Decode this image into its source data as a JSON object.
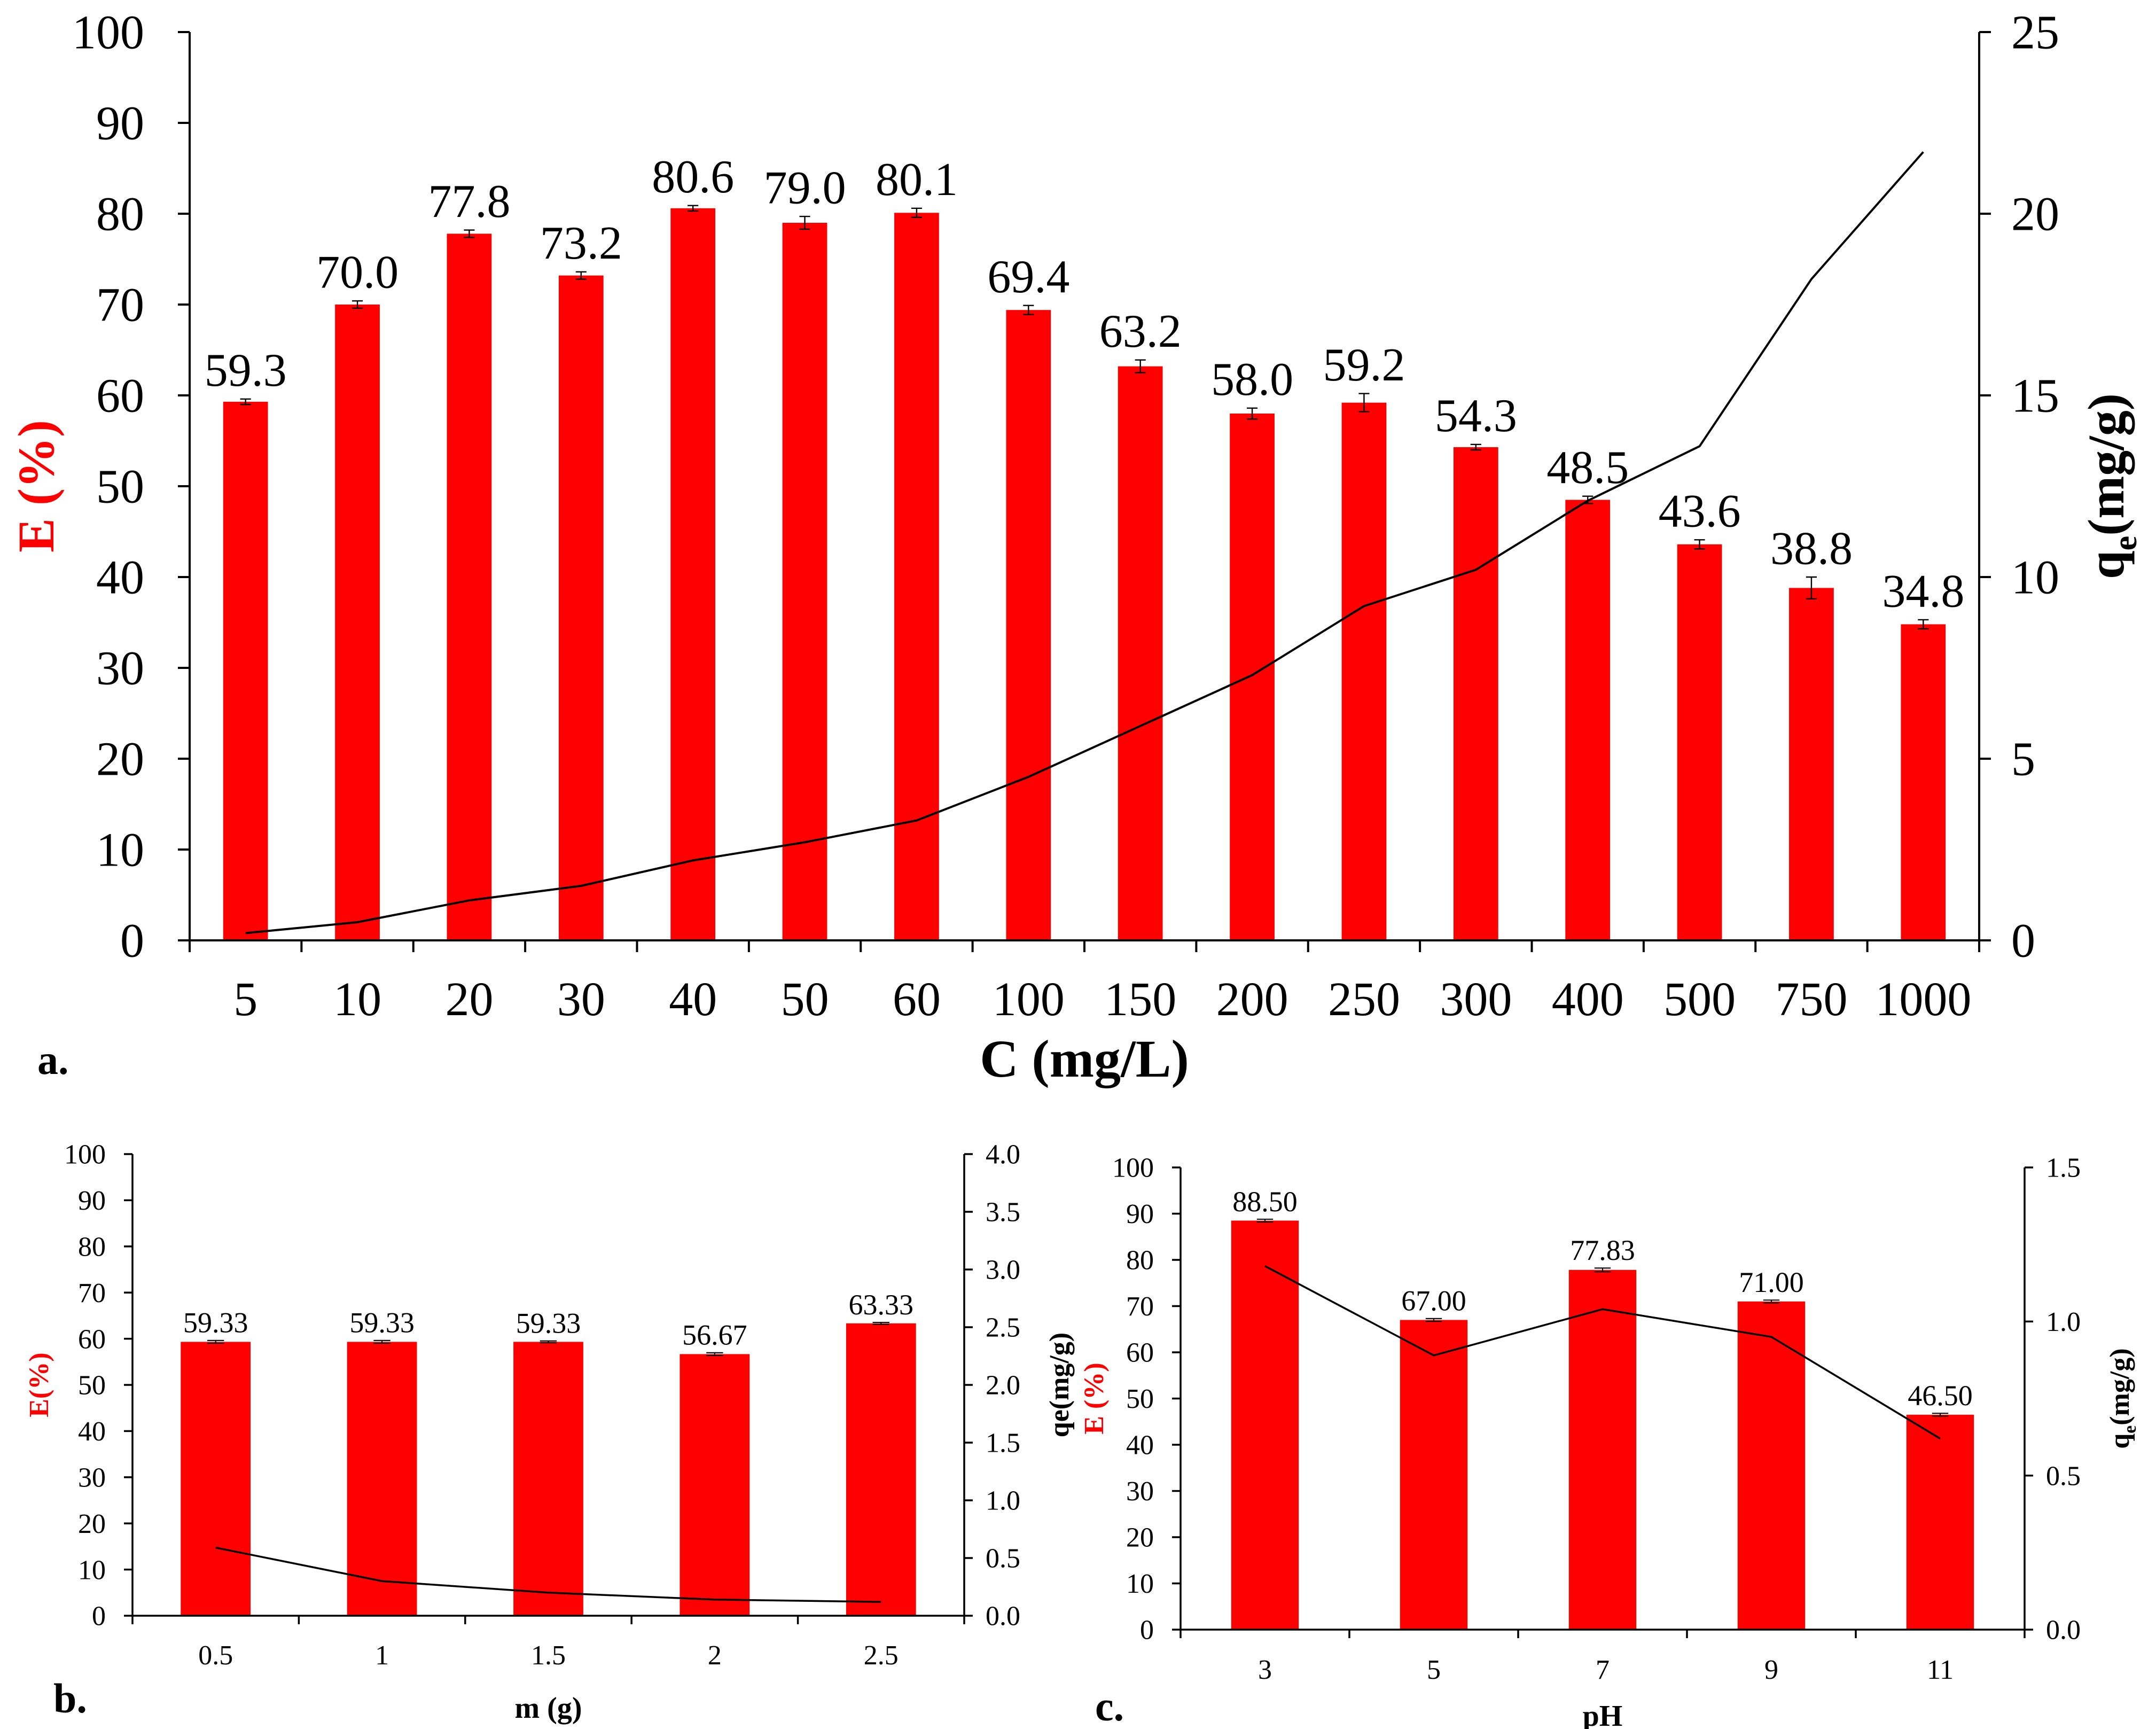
{
  "colors": {
    "bar": "#ff0000",
    "axis_red": "#ff0000",
    "line": "#000000",
    "text": "#000000"
  },
  "chart_data": [
    {
      "panel": "a",
      "panel_label": "a.",
      "type": "bar",
      "xlabel": "C (mg/L)",
      "ylabel": "E (%)",
      "y2label_main": "q",
      "y2label_sub": "e",
      "y2label_rest": "(mg/g)",
      "categories": [
        "5",
        "10",
        "20",
        "30",
        "40",
        "50",
        "60",
        "100",
        "150",
        "200",
        "250",
        "300",
        "400",
        "500",
        "750",
        "1000"
      ],
      "values": [
        59.3,
        70.0,
        77.8,
        73.2,
        80.6,
        79.0,
        80.1,
        69.4,
        63.2,
        58.0,
        59.2,
        54.3,
        48.5,
        43.6,
        38.8,
        34.8
      ],
      "value_labels": [
        "59.3",
        "70.0",
        "77.8",
        "73.2",
        "80.6",
        "79.0",
        "80.1",
        "69.4",
        "63.2",
        "58.0",
        "59.2",
        "54.3",
        "48.5",
        "43.6",
        "38.8",
        "34.8"
      ],
      "errors": [
        0.3,
        0.4,
        0.4,
        0.4,
        0.3,
        0.7,
        0.5,
        0.5,
        0.7,
        0.6,
        1.0,
        0.3,
        0.4,
        0.5,
        1.2,
        0.5
      ],
      "line": [
        0.2,
        0.5,
        1.1,
        1.5,
        2.2,
        2.7,
        3.3,
        4.5,
        5.9,
        7.3,
        9.2,
        10.2,
        12.1,
        13.6,
        18.2,
        21.7
      ],
      "ylim": [
        0,
        100
      ],
      "yticks": [
        "0",
        "10",
        "20",
        "30",
        "40",
        "50",
        "60",
        "70",
        "80",
        "90",
        "100"
      ],
      "y2lim": [
        0,
        25
      ],
      "y2ticks": [
        "0",
        "5",
        "10",
        "15",
        "20",
        "25"
      ]
    },
    {
      "panel": "b",
      "panel_label": "b.",
      "type": "bar",
      "xlabel": "m (g)",
      "ylabel": "E(%)",
      "y2label_main": "qe(mg/g)",
      "y2label_sub": "",
      "y2label_rest": "",
      "categories": [
        "0.5",
        "1",
        "1.5",
        "2",
        "2.5"
      ],
      "values": [
        59.33,
        59.33,
        59.33,
        56.67,
        63.33
      ],
      "value_labels": [
        "59.33",
        "59.33",
        "59.33",
        "56.67",
        "63.33"
      ],
      "errors": [
        0.3,
        0.3,
        0.2,
        0.3,
        0.2
      ],
      "line": [
        0.59,
        0.3,
        0.2,
        0.14,
        0.12
      ],
      "ylim": [
        0,
        100
      ],
      "yticks": [
        "0",
        "10",
        "20",
        "30",
        "40",
        "50",
        "60",
        "70",
        "80",
        "90",
        "100"
      ],
      "y2lim": [
        0,
        4
      ],
      "y2ticks": [
        "0.0",
        "0.5",
        "1.0",
        "1.5",
        "2.0",
        "2.5",
        "3.0",
        "3.5",
        "4.0"
      ]
    },
    {
      "panel": "c",
      "panel_label": "c.",
      "type": "bar",
      "xlabel": "pH",
      "ylabel": "E (%)",
      "y2label_main": "q",
      "y2label_sub": "e",
      "y2label_rest": "(mg/g)",
      "categories": [
        "3",
        "5",
        "7",
        "9",
        "11"
      ],
      "values": [
        88.5,
        67.0,
        77.83,
        71.0,
        46.5
      ],
      "value_labels": [
        "88.50",
        "67.00",
        "77.83",
        "71.00",
        "46.50"
      ],
      "errors": [
        0.3,
        0.3,
        0.4,
        0.3,
        0.3
      ],
      "line": [
        1.18,
        0.89,
        1.04,
        0.95,
        0.62
      ],
      "ylim": [
        0,
        100
      ],
      "yticks": [
        "0",
        "10",
        "20",
        "30",
        "40",
        "50",
        "60",
        "70",
        "80",
        "90",
        "100"
      ],
      "y2lim": [
        0,
        1.5
      ],
      "y2ticks": [
        "0.0",
        "0.5",
        "1.0",
        "1.5"
      ]
    }
  ]
}
